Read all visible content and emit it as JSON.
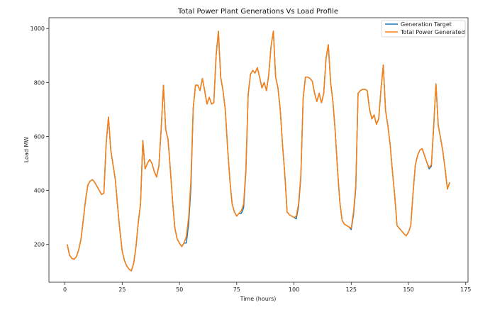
{
  "chart_data": {
    "type": "line",
    "title": "Total Power Plant Generations Vs Load Profile",
    "xlabel": "Time (hours)",
    "ylabel": "Load MW",
    "xlim": [
      -7,
      176
    ],
    "ylim": [
      60,
      1040
    ],
    "xticks": [
      0,
      25,
      50,
      75,
      100,
      125,
      150,
      175
    ],
    "yticks": [
      200,
      400,
      600,
      800,
      1000
    ],
    "grid": false,
    "legend_position": "top-right",
    "x": [
      1,
      2,
      3,
      4,
      5,
      6,
      7,
      8,
      9,
      10,
      11,
      12,
      13,
      14,
      15,
      16,
      17,
      18,
      19,
      20,
      21,
      22,
      23,
      24,
      25,
      26,
      27,
      28,
      29,
      30,
      31,
      32,
      33,
      34,
      35,
      36,
      37,
      38,
      39,
      40,
      41,
      42,
      43,
      44,
      45,
      46,
      47,
      48,
      49,
      50,
      51,
      52,
      53,
      54,
      55,
      56,
      57,
      58,
      59,
      60,
      61,
      62,
      63,
      64,
      65,
      66,
      67,
      68,
      69,
      70,
      71,
      72,
      73,
      74,
      75,
      76,
      77,
      78,
      79,
      80,
      81,
      82,
      83,
      84,
      85,
      86,
      87,
      88,
      89,
      90,
      91,
      92,
      93,
      94,
      95,
      96,
      97,
      98,
      99,
      100,
      101,
      102,
      103,
      104,
      105,
      106,
      107,
      108,
      109,
      110,
      111,
      112,
      113,
      114,
      115,
      116,
      117,
      118,
      119,
      120,
      121,
      122,
      123,
      124,
      125,
      126,
      127,
      128,
      129,
      130,
      131,
      132,
      133,
      134,
      135,
      136,
      137,
      138,
      139,
      140,
      141,
      142,
      143,
      144,
      145,
      146,
      147,
      148,
      149,
      150,
      151,
      152,
      153,
      154,
      155,
      156,
      157,
      158,
      159,
      160,
      161,
      162,
      163,
      164,
      165,
      166,
      167,
      168
    ],
    "series": [
      {
        "name": "Generation Target",
        "color": "#1f77b4",
        "values": [
          200,
          160,
          148,
          145,
          155,
          180,
          220,
          290,
          365,
          420,
          435,
          440,
          430,
          415,
          400,
          385,
          390,
          575,
          672,
          550,
          495,
          440,
          340,
          250,
          175,
          140,
          120,
          108,
          102,
          130,
          190,
          280,
          350,
          585,
          480,
          500,
          515,
          500,
          470,
          450,
          490,
          625,
          790,
          625,
          590,
          480,
          360,
          260,
          220,
          205,
          192,
          205,
          205,
          275,
          410,
          705,
          790,
          790,
          770,
          815,
          770,
          720,
          745,
          720,
          725,
          900,
          990,
          820,
          770,
          700,
          560,
          440,
          350,
          320,
          305,
          315,
          315,
          335,
          470,
          755,
          830,
          845,
          835,
          855,
          820,
          780,
          800,
          770,
          830,
          935,
          990,
          820,
          780,
          700,
          570,
          460,
          320,
          310,
          305,
          300,
          295,
          340,
          450,
          740,
          820,
          820,
          815,
          805,
          760,
          730,
          760,
          725,
          760,
          890,
          940,
          800,
          730,
          620,
          480,
          360,
          290,
          275,
          270,
          265,
          255,
          310,
          410,
          760,
          770,
          775,
          775,
          770,
          700,
          665,
          680,
          645,
          665,
          775,
          865,
          695,
          640,
          570,
          470,
          380,
          270,
          260,
          250,
          240,
          232,
          245,
          270,
          390,
          495,
          530,
          550,
          555,
          530,
          505,
          480,
          490,
          635,
          795,
          640,
          595,
          545,
          480,
          405,
          430
        ]
      },
      {
        "name": "Total Power Generated",
        "color": "#ff7f0e",
        "values": [
          200,
          160,
          148,
          145,
          155,
          180,
          220,
          290,
          365,
          420,
          435,
          440,
          430,
          415,
          400,
          385,
          390,
          575,
          672,
          550,
          495,
          440,
          340,
          250,
          175,
          140,
          120,
          108,
          102,
          130,
          190,
          280,
          350,
          585,
          480,
          500,
          515,
          500,
          470,
          450,
          490,
          625,
          790,
          625,
          590,
          480,
          360,
          260,
          220,
          205,
          192,
          205,
          230,
          300,
          440,
          705,
          790,
          790,
          770,
          815,
          770,
          720,
          745,
          720,
          725,
          900,
          990,
          820,
          770,
          700,
          560,
          440,
          350,
          320,
          305,
          315,
          325,
          350,
          480,
          755,
          830,
          845,
          835,
          855,
          820,
          780,
          800,
          770,
          830,
          935,
          990,
          820,
          780,
          700,
          570,
          460,
          320,
          310,
          305,
          300,
          305,
          350,
          460,
          740,
          820,
          820,
          815,
          805,
          760,
          730,
          760,
          725,
          760,
          890,
          940,
          800,
          730,
          620,
          480,
          360,
          290,
          275,
          270,
          265,
          260,
          320,
          420,
          760,
          770,
          775,
          775,
          770,
          700,
          665,
          680,
          645,
          665,
          775,
          865,
          695,
          640,
          570,
          470,
          380,
          270,
          260,
          250,
          240,
          232,
          245,
          270,
          390,
          495,
          530,
          550,
          555,
          530,
          505,
          485,
          495,
          640,
          795,
          640,
          595,
          545,
          480,
          405,
          430
        ]
      }
    ]
  }
}
